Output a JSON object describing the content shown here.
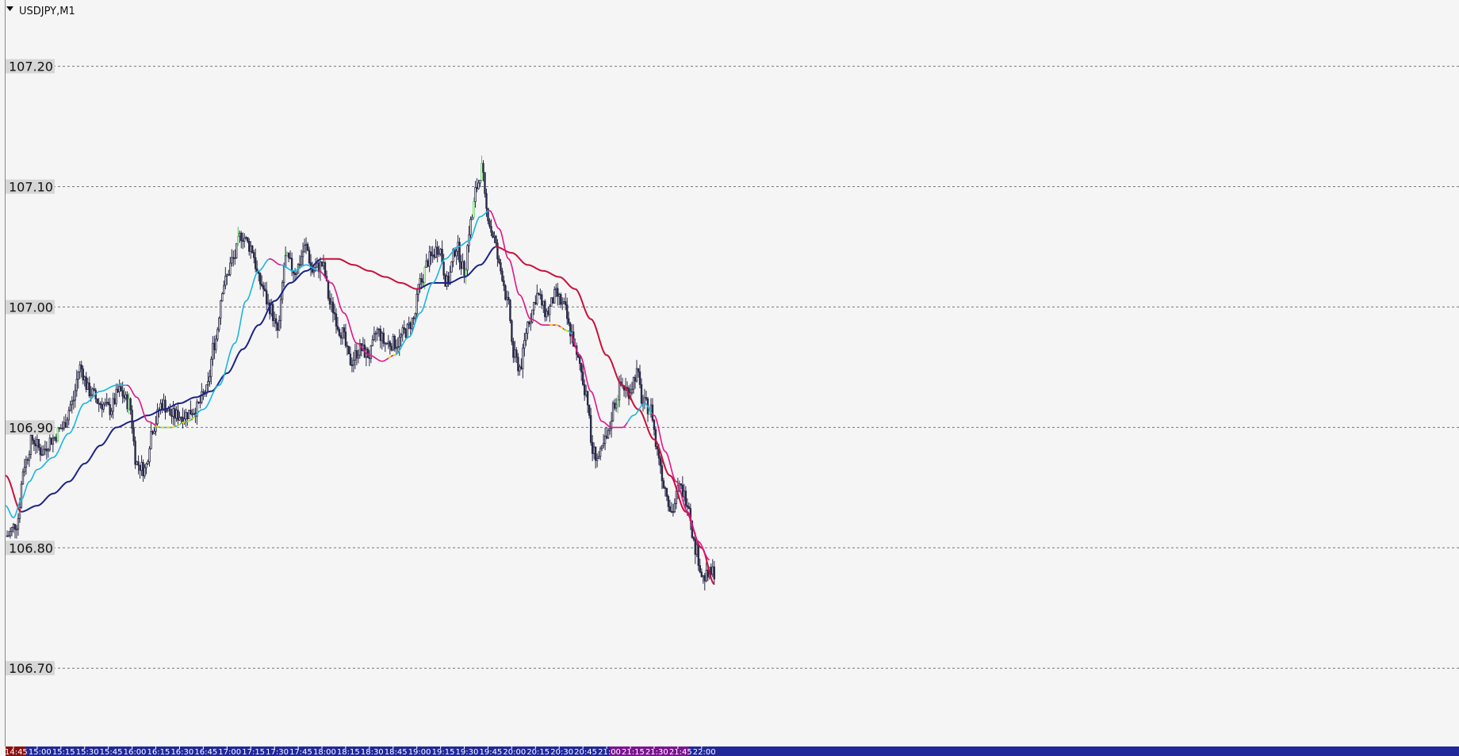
{
  "chart_data": {
    "type": "candlestick",
    "title": "USDJPY,M1",
    "symbol": "USDJPY",
    "timeframe": "M1",
    "ylim": [
      106.635,
      107.255
    ],
    "grid": true,
    "y_ticks": [
      "107.20",
      "107.10",
      "107.00",
      "106.90",
      "106.80",
      "106.70"
    ],
    "x_ticks": [
      "14:45",
      "15:00",
      "15:15",
      "15:30",
      "15:45",
      "16:00",
      "16:15",
      "16:30",
      "16:45",
      "17:00",
      "17:15",
      "17:30",
      "17:45",
      "18:00",
      "18:15",
      "18:30",
      "18:45",
      "19:00",
      "19:15",
      "19:30",
      "19:45",
      "20:00",
      "20:15",
      "20:30",
      "20:45",
      "21:00",
      "21:15",
      "21:30",
      "21:45",
      "22:00"
    ],
    "colors": {
      "background": "#f5f5f5",
      "grid": "#777777",
      "candle": "#2a2a48",
      "candle_up_highlight": "#55cc55",
      "fast_ma_up": "#19b6e0",
      "fast_ma_down": "#e0158a",
      "slow_ma_up": "#1a2388",
      "slow_ma_down": "#c8103c",
      "flat_marker": "#e6d600",
      "time_axis": "#20289a",
      "time_axis_left": "#8a1010",
      "time_axis_right": "#7a1490"
    },
    "price_anchors": [
      [
        "14:41",
        106.81
      ],
      [
        "14:47",
        106.82
      ],
      [
        "14:52",
        106.87
      ],
      [
        "14:57",
        106.89
      ],
      [
        "15:03",
        106.88
      ],
      [
        "15:09",
        106.89
      ],
      [
        "15:16",
        106.9
      ],
      [
        "15:22",
        106.92
      ],
      [
        "15:27",
        106.95
      ],
      [
        "15:33",
        106.93
      ],
      [
        "15:40",
        106.92
      ],
      [
        "15:46",
        106.915
      ],
      [
        "15:52",
        106.93
      ],
      [
        "15:58",
        106.92
      ],
      [
        "16:03",
        106.87
      ],
      [
        "16:08",
        106.865
      ],
      [
        "16:13",
        106.9
      ],
      [
        "16:19",
        106.92
      ],
      [
        "16:25",
        106.91
      ],
      [
        "16:32",
        106.91
      ],
      [
        "16:40",
        106.915
      ],
      [
        "16:47",
        106.93
      ],
      [
        "16:52",
        106.97
      ],
      [
        "16:58",
        107.02
      ],
      [
        "17:04",
        107.04
      ],
      [
        "17:09",
        107.06
      ],
      [
        "17:15",
        107.05
      ],
      [
        "17:21",
        107.02
      ],
      [
        "17:27",
        107.0
      ],
      [
        "17:32",
        106.98
      ],
      [
        "17:37",
        107.04
      ],
      [
        "17:43",
        107.03
      ],
      [
        "17:50",
        107.05
      ],
      [
        "17:54",
        107.03
      ],
      [
        "18:00",
        107.035
      ],
      [
        "18:06",
        107.0
      ],
      [
        "18:12",
        106.98
      ],
      [
        "18:18",
        106.955
      ],
      [
        "18:24",
        106.965
      ],
      [
        "18:30",
        106.96
      ],
      [
        "18:35",
        106.98
      ],
      [
        "18:40",
        106.97
      ],
      [
        "18:47",
        106.97
      ],
      [
        "18:53",
        106.98
      ],
      [
        "18:58",
        106.99
      ],
      [
        "19:02",
        107.02
      ],
      [
        "19:08",
        107.04
      ],
      [
        "19:14",
        107.05
      ],
      [
        "19:19",
        107.02
      ],
      [
        "19:25",
        107.05
      ],
      [
        "19:30",
        107.03
      ],
      [
        "19:34",
        107.07
      ],
      [
        "19:38",
        107.1
      ],
      [
        "19:41",
        107.115
      ],
      [
        "19:44",
        107.08
      ],
      [
        "19:48",
        107.06
      ],
      [
        "19:53",
        107.03
      ],
      [
        "19:58",
        107.0
      ],
      [
        "20:01",
        106.96
      ],
      [
        "20:05",
        106.95
      ],
      [
        "20:11",
        106.99
      ],
      [
        "20:16",
        107.01
      ],
      [
        "20:22",
        106.995
      ],
      [
        "20:28",
        107.01
      ],
      [
        "20:33",
        107.0
      ],
      [
        "20:37",
        106.98
      ],
      [
        "20:42",
        106.955
      ],
      [
        "20:47",
        106.93
      ],
      [
        "20:51",
        106.88
      ],
      [
        "20:55",
        106.875
      ],
      [
        "21:00",
        106.89
      ],
      [
        "21:05",
        106.92
      ],
      [
        "21:09",
        106.935
      ],
      [
        "21:14",
        106.93
      ],
      [
        "21:19",
        106.945
      ],
      [
        "21:23",
        106.92
      ],
      [
        "21:28",
        106.915
      ],
      [
        "21:32",
        106.88
      ],
      [
        "21:37",
        106.85
      ],
      [
        "21:41",
        106.83
      ],
      [
        "21:46",
        106.85
      ],
      [
        "21:51",
        106.84
      ],
      [
        "21:56",
        106.8
      ],
      [
        "22:01",
        106.775
      ],
      [
        "22:08",
        106.78
      ]
    ],
    "slow_ma": [
      [
        "14:40",
        106.86
      ],
      [
        "14:50",
        106.83
      ],
      [
        "15:00",
        106.835
      ],
      [
        "15:10",
        106.845
      ],
      [
        "15:20",
        106.855
      ],
      [
        "15:30",
        106.87
      ],
      [
        "15:40",
        106.885
      ],
      [
        "15:50",
        106.9
      ],
      [
        "16:00",
        106.905
      ],
      [
        "16:10",
        106.91
      ],
      [
        "16:20",
        106.915
      ],
      [
        "16:30",
        106.92
      ],
      [
        "16:40",
        106.925
      ],
      [
        "16:50",
        106.93
      ],
      [
        "17:00",
        106.945
      ],
      [
        "17:10",
        106.965
      ],
      [
        "17:20",
        106.985
      ],
      [
        "17:30",
        107.005
      ],
      [
        "17:40",
        107.02
      ],
      [
        "17:50",
        107.03
      ],
      [
        "18:00",
        107.04
      ],
      [
        "18:10",
        107.04
      ],
      [
        "18:20",
        107.035
      ],
      [
        "18:30",
        107.03
      ],
      [
        "18:40",
        107.025
      ],
      [
        "18:50",
        107.02
      ],
      [
        "19:00",
        107.015
      ],
      [
        "19:10",
        107.02
      ],
      [
        "19:20",
        107.02
      ],
      [
        "19:30",
        107.025
      ],
      [
        "19:40",
        107.035
      ],
      [
        "19:50",
        107.05
      ],
      [
        "20:00",
        107.045
      ],
      [
        "20:10",
        107.035
      ],
      [
        "20:20",
        107.03
      ],
      [
        "20:30",
        107.025
      ],
      [
        "20:40",
        107.015
      ],
      [
        "20:50",
        106.99
      ],
      [
        "21:00",
        106.96
      ],
      [
        "21:10",
        106.935
      ],
      [
        "21:20",
        106.915
      ],
      [
        "21:30",
        106.89
      ],
      [
        "21:40",
        106.86
      ],
      [
        "21:50",
        106.83
      ],
      [
        "22:00",
        106.8
      ],
      [
        "22:08",
        106.77
      ]
    ],
    "fast_ma": [
      [
        "14:40",
        106.835
      ],
      [
        "14:45",
        106.825
      ],
      [
        "14:50",
        106.84
      ],
      [
        "14:55",
        106.855
      ],
      [
        "15:00",
        106.865
      ],
      [
        "15:10",
        106.875
      ],
      [
        "15:20",
        106.895
      ],
      [
        "15:30",
        106.92
      ],
      [
        "15:40",
        106.93
      ],
      [
        "15:50",
        106.935
      ],
      [
        "15:57",
        106.935
      ],
      [
        "16:03",
        106.925
      ],
      [
        "16:10",
        106.905
      ],
      [
        "16:18",
        106.9
      ],
      [
        "16:25",
        106.9
      ],
      [
        "16:35",
        106.905
      ],
      [
        "16:45",
        106.915
      ],
      [
        "16:55",
        106.935
      ],
      [
        "17:05",
        106.97
      ],
      [
        "17:12",
        107.005
      ],
      [
        "17:20",
        107.03
      ],
      [
        "17:27",
        107.04
      ],
      [
        "17:34",
        107.035
      ],
      [
        "17:42",
        107.03
      ],
      [
        "17:50",
        107.035
      ],
      [
        "17:58",
        107.03
      ],
      [
        "18:06",
        107.02
      ],
      [
        "18:14",
        106.995
      ],
      [
        "18:22",
        106.97
      ],
      [
        "18:30",
        106.96
      ],
      [
        "18:38",
        106.955
      ],
      [
        "18:46",
        106.96
      ],
      [
        "18:55",
        106.975
      ],
      [
        "19:02",
        106.995
      ],
      [
        "19:10",
        107.02
      ],
      [
        "19:18",
        107.04
      ],
      [
        "19:26",
        107.05
      ],
      [
        "19:33",
        107.055
      ],
      [
        "19:40",
        107.075
      ],
      [
        "19:46",
        107.08
      ],
      [
        "19:52",
        107.065
      ],
      [
        "19:58",
        107.04
      ],
      [
        "20:05",
        107.01
      ],
      [
        "20:12",
        106.99
      ],
      [
        "20:20",
        106.985
      ],
      [
        "20:28",
        106.985
      ],
      [
        "20:36",
        106.98
      ],
      [
        "20:43",
        106.96
      ],
      [
        "20:50",
        106.93
      ],
      [
        "20:57",
        106.905
      ],
      [
        "21:03",
        106.9
      ],
      [
        "21:10",
        106.9
      ],
      [
        "21:17",
        106.91
      ],
      [
        "21:24",
        106.92
      ],
      [
        "21:30",
        106.91
      ],
      [
        "21:37",
        106.88
      ],
      [
        "21:44",
        106.855
      ],
      [
        "21:51",
        106.83
      ],
      [
        "21:58",
        106.805
      ],
      [
        "22:05",
        106.79
      ]
    ],
    "fast_ma_down_ranges": [
      [
        "15:57",
        "16:15"
      ],
      [
        "17:27",
        "17:34"
      ],
      [
        "17:58",
        "18:46"
      ],
      [
        "19:46",
        "20:33"
      ],
      [
        "20:38",
        "21:13"
      ],
      [
        "21:29",
        "22:08"
      ]
    ],
    "slow_ma_down_ranges": [
      [
        "14:40",
        "14:50"
      ],
      [
        "18:00",
        "19:02"
      ],
      [
        "19:50",
        "22:08"
      ]
    ],
    "flat_markers": [
      [
        "16:15",
        "16:40"
      ],
      [
        "18:42",
        "18:48"
      ],
      [
        "20:24",
        "20:36"
      ]
    ]
  }
}
